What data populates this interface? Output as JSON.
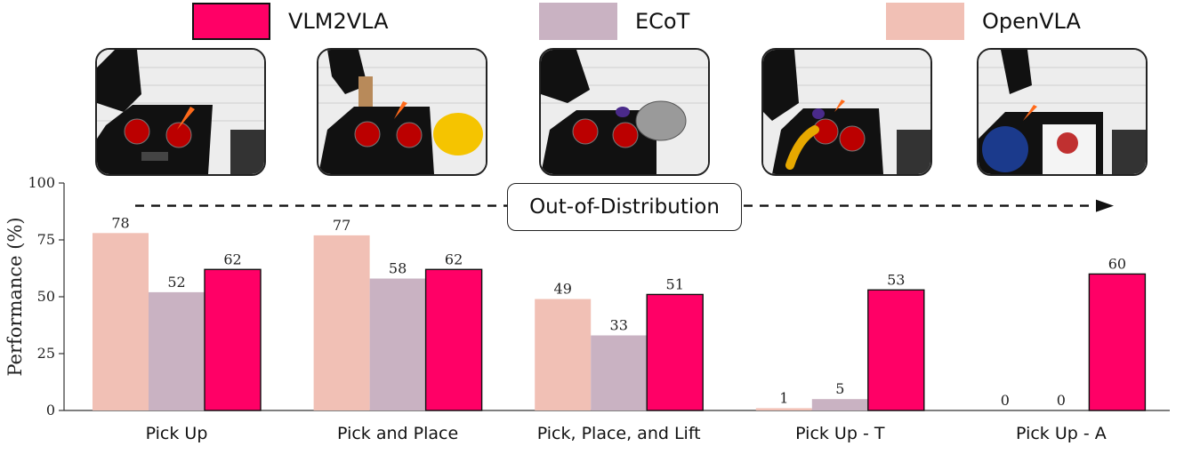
{
  "legend": [
    {
      "name": "VLM2VLA",
      "color": "#FF0066"
    },
    {
      "name": "ECoT",
      "color": "#C9B2C2"
    },
    {
      "name": "OpenVLA",
      "color": "#F1C0B5"
    }
  ],
  "thumbnails": [
    {
      "icon": "kitchen-scene-carrot-icon"
    },
    {
      "icon": "kitchen-scene-carrot-plate-icon"
    },
    {
      "icon": "kitchen-scene-eggplant-pan-icon"
    },
    {
      "icon": "kitchen-scene-banana-icon"
    },
    {
      "icon": "kitchen-scene-poster-icon"
    }
  ],
  "annotation": {
    "label": "Out-of-Distribution"
  },
  "chart_data": {
    "type": "bar",
    "ylabel": "Performance (%)",
    "ylim": [
      0,
      100
    ],
    "yticks": [
      0,
      25,
      50,
      75,
      100
    ],
    "categories": [
      "Pick Up",
      "Pick and Place",
      "Pick, Place, and Lift",
      "Pick Up - T",
      "Pick Up - A"
    ],
    "series": [
      {
        "name": "OpenVLA",
        "color": "#F1C0B5",
        "values": [
          78,
          77,
          49,
          1,
          0
        ]
      },
      {
        "name": "ECoT",
        "color": "#C9B2C2",
        "values": [
          52,
          58,
          33,
          5,
          0
        ]
      },
      {
        "name": "VLM2VLA",
        "color": "#FF0066",
        "values": [
          62,
          62,
          51,
          53,
          60
        ]
      }
    ]
  }
}
